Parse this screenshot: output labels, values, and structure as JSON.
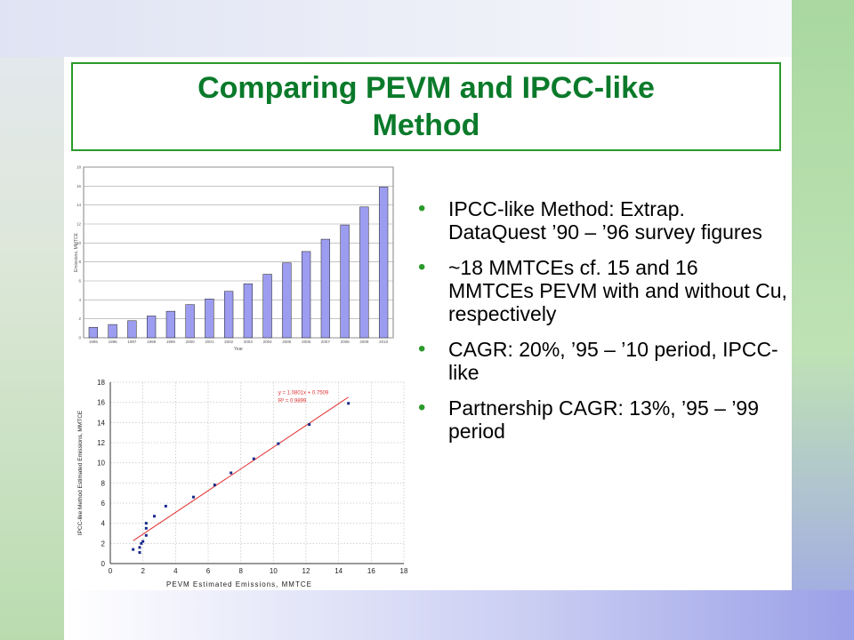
{
  "title": "Comparing PEVM and IPCC-like Method",
  "bullets": [
    "IPCC-like Method: Extrap. DataQuest ’90 – ’96 survey figures",
    "~18 MMTCEs cf. 15 and 16 MMTCEs PEVM with and without Cu, respectively",
    "CAGR: 20%, ’95 – ’10 period, IPCC-like",
    "Partnership CAGR: 13%, ’95 – ’99 period"
  ],
  "colors": {
    "title": "#0a7a2a",
    "accent": "#2a9a2a",
    "bar": "#9c9cf0",
    "fit_line": "#e03030"
  },
  "chart_data": [
    {
      "type": "bar",
      "xlabel": "Year",
      "ylabel": "Emissions, MMTCE",
      "categories": [
        "1995",
        "1996",
        "1997",
        "1998",
        "1999",
        "2000",
        "2001",
        "2002",
        "2003",
        "2004",
        "2005",
        "2006",
        "2007",
        "2008",
        "2009",
        "2010"
      ],
      "values": [
        1.1,
        1.4,
        1.8,
        2.3,
        2.8,
        3.5,
        4.1,
        4.9,
        5.7,
        6.7,
        7.9,
        9.1,
        10.4,
        11.9,
        13.8,
        15.9
      ],
      "yticks": [
        "0",
        "2",
        "4",
        "6",
        "8",
        "10",
        "12",
        "14",
        "16",
        "18"
      ],
      "ylim": [
        0,
        18
      ],
      "grid": true
    },
    {
      "type": "scatter",
      "xlabel": "PEVM Estimated Emissions, MMTCE",
      "ylabel": "IPCC-like Method Estimated Emissions, MMTCE",
      "xticks": [
        "0",
        "2",
        "4",
        "6",
        "8",
        "10",
        "12",
        "14",
        "16",
        "18"
      ],
      "yticks": [
        "0",
        "2",
        "4",
        "6",
        "8",
        "10",
        "12",
        "14",
        "16",
        "18"
      ],
      "xlim": [
        0,
        18
      ],
      "ylim": [
        0,
        18
      ],
      "points": [
        [
          1.4,
          1.4
        ],
        [
          1.8,
          1.1
        ],
        [
          1.8,
          1.6
        ],
        [
          1.9,
          2.0
        ],
        [
          2.0,
          2.2
        ],
        [
          2.2,
          2.8
        ],
        [
          2.2,
          3.5
        ],
        [
          2.2,
          4.0
        ],
        [
          2.7,
          4.7
        ],
        [
          3.4,
          5.7
        ],
        [
          5.1,
          6.6
        ],
        [
          6.4,
          7.8
        ],
        [
          7.4,
          9.0
        ],
        [
          8.8,
          10.4
        ],
        [
          10.3,
          11.9
        ],
        [
          12.2,
          13.8
        ],
        [
          14.6,
          15.9
        ]
      ],
      "fit": {
        "slope": 1.0801,
        "intercept": 0.7509,
        "x_range": [
          1.4,
          14.6
        ]
      },
      "equation": "y = 1.0801x + 0.7509",
      "r2_label": "R² = 0.9899",
      "grid": true
    }
  ]
}
